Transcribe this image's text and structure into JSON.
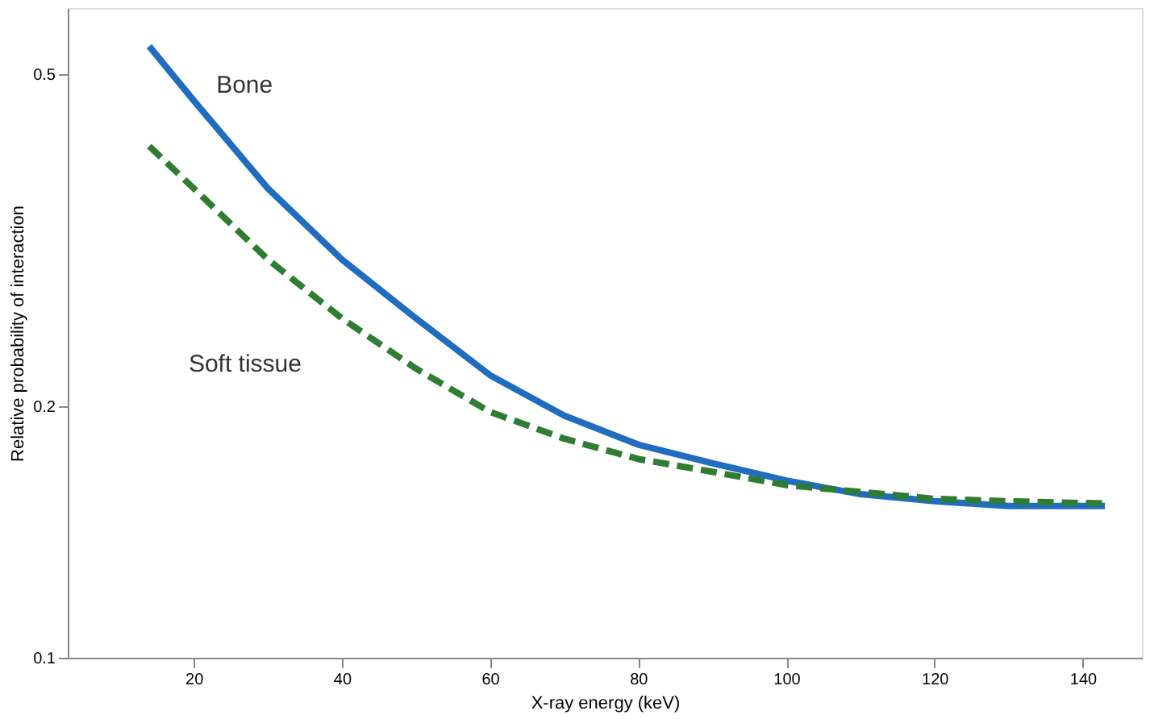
{
  "chart_data": {
    "type": "line",
    "xlabel": "X-ray energy (keV)",
    "ylabel": "Relative probability of interaction",
    "x": [
      14,
      20,
      30,
      40,
      50,
      60,
      70,
      80,
      90,
      100,
      110,
      120,
      130,
      143
    ],
    "series": [
      {
        "name": "Bone",
        "color": "#1f6cc0",
        "line_style": "solid",
        "values": [
          0.54,
          0.465,
          0.365,
          0.3,
          0.255,
          0.218,
          0.195,
          0.18,
          0.171,
          0.163,
          0.157,
          0.154,
          0.152,
          0.152
        ]
      },
      {
        "name": "Soft tissue",
        "color": "#2e7d32",
        "line_style": "dashed",
        "values": [
          0.41,
          0.365,
          0.3,
          0.255,
          0.222,
          0.197,
          0.183,
          0.173,
          0.167,
          0.161,
          0.158,
          0.155,
          0.154,
          0.153
        ]
      }
    ],
    "xlim": [
      3,
      148
    ],
    "xticks": [
      20,
      40,
      60,
      80,
      100,
      120,
      140
    ],
    "ylim": [
      0.1,
      0.6
    ],
    "yticks": [
      0.1,
      0.2,
      0.5
    ],
    "log": "y",
    "grid": false,
    "legend": false,
    "marker": "none"
  }
}
